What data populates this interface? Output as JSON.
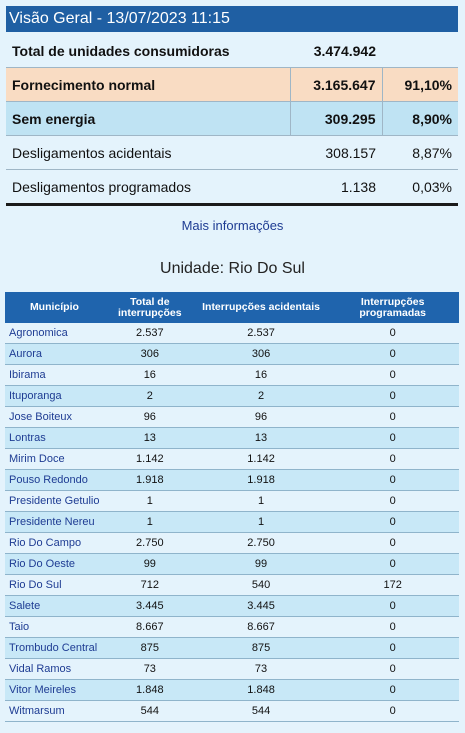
{
  "header": {
    "title": "Visão Geral - 13/07/2023 11:15"
  },
  "summary": {
    "total": {
      "label": "Total de unidades consumidoras",
      "value": "3.474.942"
    },
    "normal": {
      "label": "Fornecimento normal",
      "value": "3.165.647",
      "pct": "91,10%"
    },
    "sem_energia": {
      "label": "Sem energia",
      "value": "309.295",
      "pct": "8,90%"
    },
    "acidentais": {
      "label": "Desligamentos acidentais",
      "value": "308.157",
      "pct": "8,87%"
    },
    "programados": {
      "label": "Desligamentos programados",
      "value": "1.138",
      "pct": "0,03%"
    }
  },
  "mais_informacoes": "Mais informações",
  "unidade": "Unidade: Rio Do Sul",
  "table": {
    "headers": [
      "Município",
      "Total de interrupções",
      "Interrupções acidentais",
      "Interrupções programadas"
    ],
    "rows": [
      [
        "Agronomica",
        "2.537",
        "2.537",
        "0"
      ],
      [
        "Aurora",
        "306",
        "306",
        "0"
      ],
      [
        "Ibirama",
        "16",
        "16",
        "0"
      ],
      [
        "Ituporanga",
        "2",
        "2",
        "0"
      ],
      [
        "Jose Boiteux",
        "96",
        "96",
        "0"
      ],
      [
        "Lontras",
        "13",
        "13",
        "0"
      ],
      [
        "Mirim Doce",
        "1.142",
        "1.142",
        "0"
      ],
      [
        "Pouso Redondo",
        "1.918",
        "1.918",
        "0"
      ],
      [
        "Presidente Getulio",
        "1",
        "1",
        "0"
      ],
      [
        "Presidente Nereu",
        "1",
        "1",
        "0"
      ],
      [
        "Rio Do Campo",
        "2.750",
        "2.750",
        "0"
      ],
      [
        "Rio Do Oeste",
        "99",
        "99",
        "0"
      ],
      [
        "Rio Do Sul",
        "712",
        "540",
        "172"
      ],
      [
        "Salete",
        "3.445",
        "3.445",
        "0"
      ],
      [
        "Taio",
        "8.667",
        "8.667",
        "0"
      ],
      [
        "Trombudo Central",
        "875",
        "875",
        "0"
      ],
      [
        "Vidal Ramos",
        "73",
        "73",
        "0"
      ],
      [
        "Vitor Meireles",
        "1.848",
        "1.848",
        "0"
      ],
      [
        "Witmarsum",
        "544",
        "544",
        "0"
      ]
    ]
  }
}
